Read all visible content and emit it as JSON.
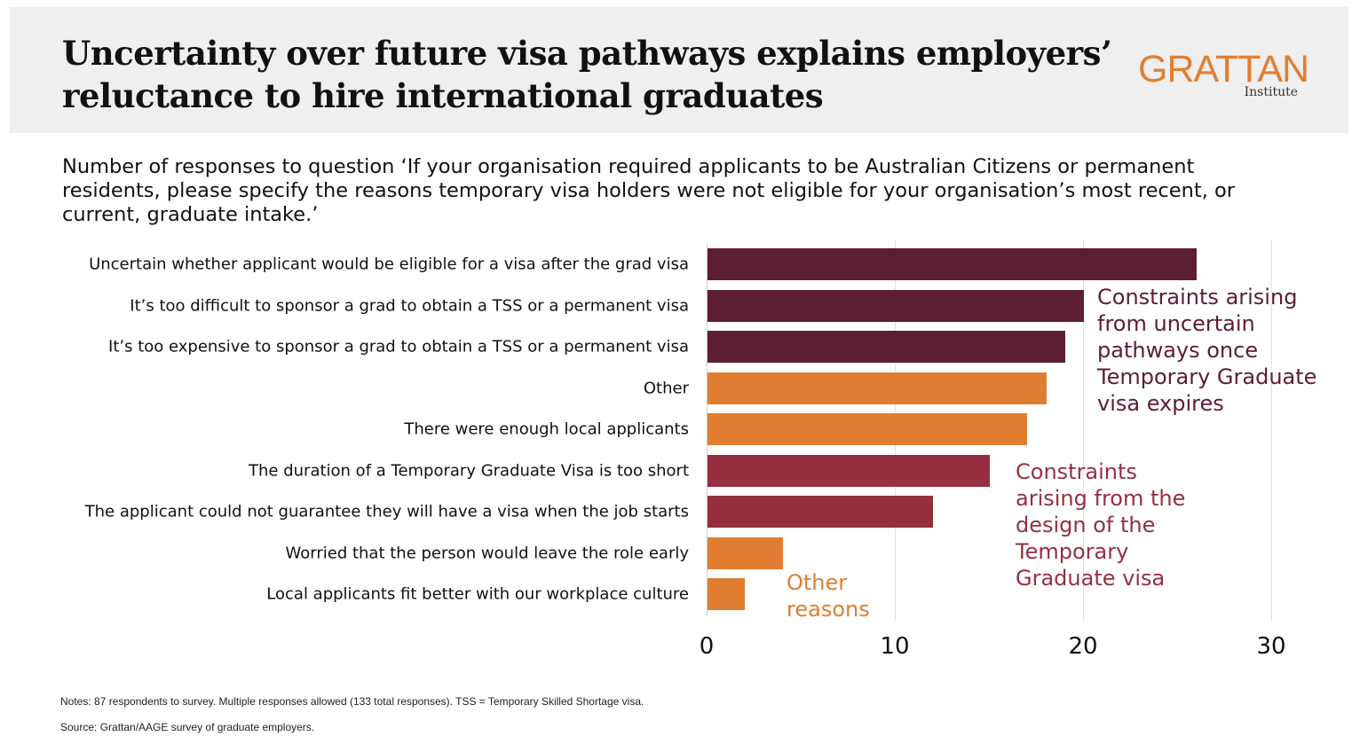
{
  "header": {
    "title_line1": "Uncertainty over future visa pathways explains employers’",
    "title_line2": "reluctance to hire international graduates",
    "logo_main": "GRATTAN",
    "logo_sub": "Institute"
  },
  "subtitle": "Number of responses to question ‘If your organisation required applicants to be Australian Citizens or permanent residents, please specify the reasons temporary visa holders were not eligible for your organisation’s most recent, or current, graduate intake.’",
  "colors": {
    "uncertain": "#5c1e31",
    "design": "#962f40",
    "other": "#e07d30"
  },
  "chart_data": {
    "type": "bar",
    "orientation": "horizontal",
    "categories": [
      "Uncertain whether applicant would be eligible for a visa after the grad visa",
      "It’s too difficult to sponsor a grad to obtain a TSS or a permanent visa",
      "It’s too expensive to sponsor a grad to obtain a TSS or a permanent visa",
      "Other",
      "There were enough local applicants",
      "The duration of a Temporary Graduate Visa is too short",
      "The applicant could not guarantee they will have a visa when the job starts",
      "Worried that the person would leave the role early",
      "Local applicants fit better with our workplace culture"
    ],
    "values": [
      26,
      20,
      19,
      18,
      17,
      15,
      12,
      4,
      2
    ],
    "groups": [
      "uncertain",
      "uncertain",
      "uncertain",
      "other",
      "other",
      "design",
      "design",
      "other",
      "other"
    ],
    "xlim": [
      0,
      30
    ],
    "xticks": [
      "0",
      "10",
      "20",
      "30"
    ],
    "grid": true,
    "annotations": {
      "uncertain": "Constraints arising from uncertain pathways once Temporary Graduate visa expires",
      "design": "Constraints arising from the design of the Temporary Graduate visa",
      "other": "Other reasons"
    }
  },
  "notes": "Notes:  87 respondents to survey. Multiple responses allowed (133 total responses). TSS = Temporary Skilled Shortage visa.",
  "source": "Source: Grattan/AAGE survey of graduate employers."
}
